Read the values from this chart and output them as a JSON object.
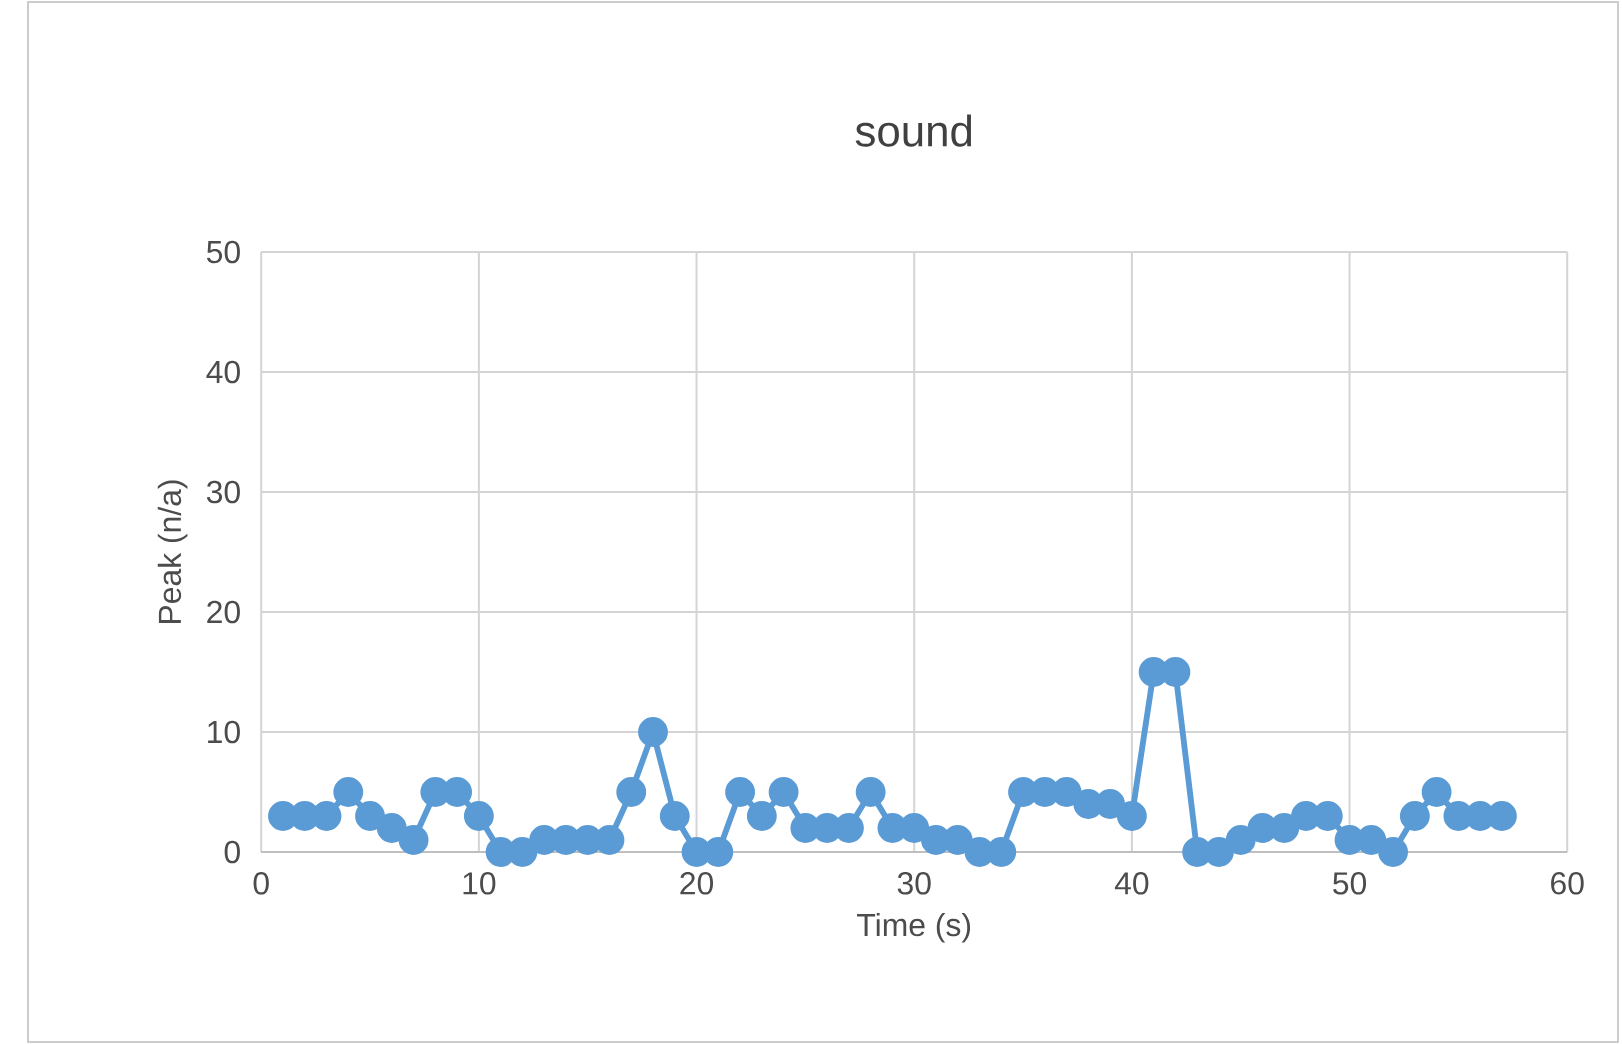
{
  "chart_data": {
    "type": "line",
    "title": "sound",
    "xlabel": "Time (s)",
    "ylabel": "Peak (n/a)",
    "x": [
      1,
      2,
      3,
      4,
      5,
      6,
      7,
      8,
      9,
      10,
      11,
      12,
      13,
      14,
      15,
      16,
      17,
      18,
      19,
      20,
      21,
      22,
      23,
      24,
      25,
      26,
      27,
      28,
      29,
      30,
      31,
      32,
      33,
      34,
      35,
      36,
      37,
      38,
      39,
      40,
      41,
      42,
      43,
      44,
      45,
      46,
      47,
      48,
      49,
      50,
      51,
      52,
      53,
      54,
      55,
      56,
      57
    ],
    "series": [
      {
        "color": "#5b9bd5",
        "values": [
          3,
          3,
          3,
          5,
          3,
          2,
          1,
          5,
          5,
          3,
          0,
          0,
          1,
          1,
          1,
          1,
          5,
          10,
          3,
          0,
          0,
          5,
          3,
          5,
          2,
          2,
          2,
          5,
          2,
          2,
          1,
          1,
          0,
          0,
          5,
          5,
          5,
          4,
          4,
          3,
          15,
          15,
          0,
          0,
          1,
          2,
          2,
          3,
          3,
          1,
          1,
          0,
          3,
          5,
          3,
          3,
          3
        ]
      }
    ],
    "xlim": [
      0,
      60
    ],
    "ylim": [
      0,
      50
    ],
    "xticks": [
      0,
      10,
      20,
      30,
      40,
      50,
      60
    ],
    "yticks": [
      0,
      10,
      20,
      30,
      40,
      50
    ],
    "grid": true,
    "marker": "circle",
    "line_style": "solid"
  }
}
